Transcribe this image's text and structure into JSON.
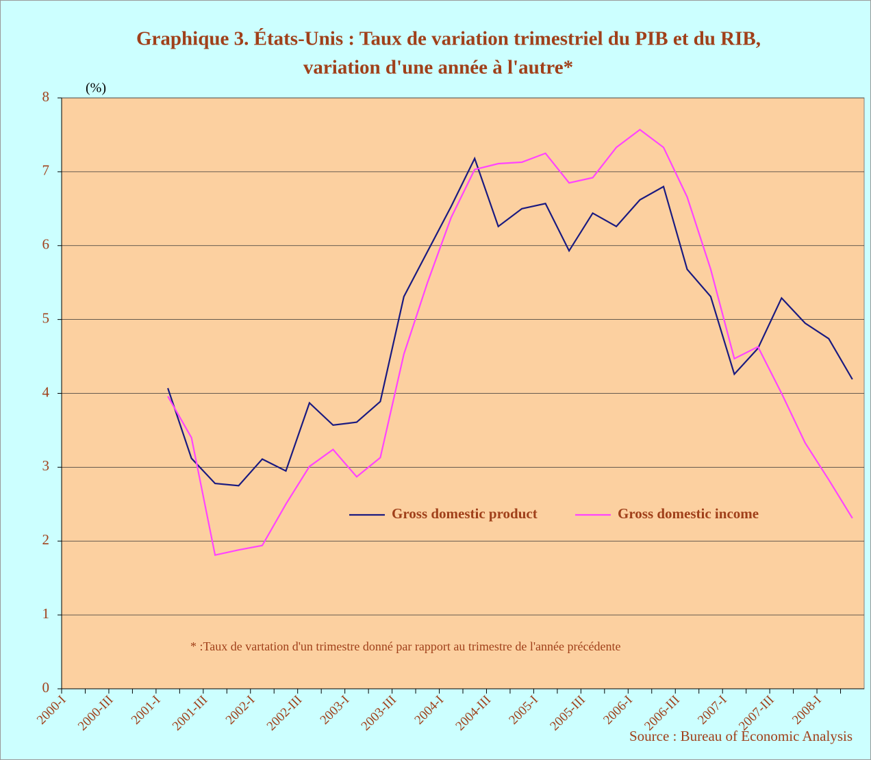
{
  "chart_data": {
    "type": "line",
    "title": [
      "Graphique 3. États-Unis : Taux de variation trimestriel du PIB et du RIB,",
      "variation d'une année à l'autre*"
    ],
    "y_label": "(%)",
    "annotation": "* :Taux de vartation d'un trimestre donné par rapport au  trimestre de l'année précédente",
    "source": "Source : Bureau of Economic Analysis",
    "categories": [
      "2000-I",
      null,
      "2000-III",
      null,
      "2001-I",
      null,
      "2001-III",
      null,
      "2002-I",
      null,
      "2002-III",
      null,
      "2003-I",
      null,
      "2003-III",
      null,
      "2004-I",
      null,
      "2004-III",
      null,
      "2005-I",
      null,
      "2005-III",
      null,
      "2006-I",
      null,
      "2006-III",
      null,
      "2007-I",
      null,
      "2007-III",
      null,
      "2008-I",
      null
    ],
    "series": [
      {
        "name": "Gross domestic product",
        "color": "#1a1a80",
        "values": [
          null,
          null,
          null,
          null,
          4.07,
          3.12,
          2.78,
          2.75,
          3.11,
          2.95,
          3.87,
          3.57,
          3.61,
          3.89,
          5.31,
          5.92,
          6.53,
          7.18,
          6.26,
          6.5,
          6.57,
          5.93,
          6.44,
          6.26,
          6.62,
          6.8,
          5.68,
          5.31,
          4.26,
          4.61,
          5.29,
          4.95,
          4.74,
          4.19
        ]
      },
      {
        "name": "Gross domestic income",
        "color": "#ff44ff",
        "values": [
          null,
          null,
          null,
          null,
          3.96,
          3.4,
          1.81,
          1.88,
          1.94,
          2.5,
          3.01,
          3.24,
          2.87,
          3.13,
          4.53,
          5.5,
          6.38,
          7.03,
          7.11,
          7.13,
          7.25,
          6.85,
          6.92,
          7.33,
          7.57,
          7.33,
          6.66,
          5.68,
          4.47,
          4.63,
          4.0,
          3.33,
          2.83,
          2.31
        ]
      }
    ],
    "ylim": [
      0,
      8
    ],
    "yticks": [
      0,
      1,
      2,
      3,
      4,
      5,
      6,
      7,
      8
    ],
    "grid": true
  }
}
